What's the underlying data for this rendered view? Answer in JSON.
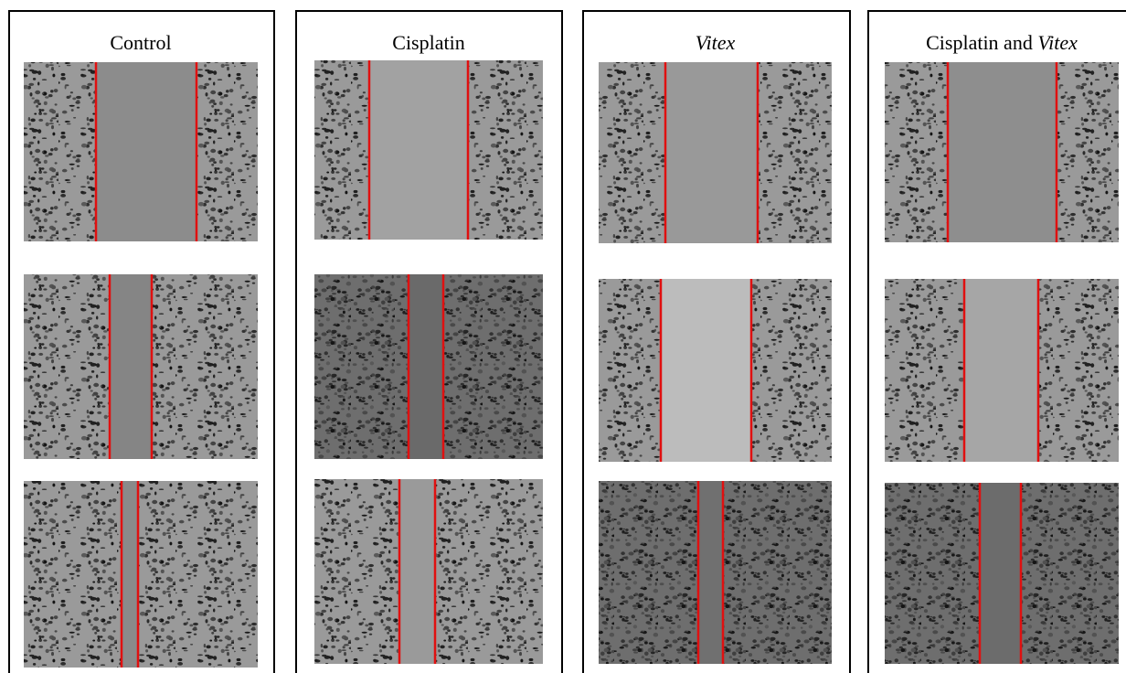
{
  "panels": [
    {
      "title": "Control"
    },
    {
      "title": "Cisplatin"
    },
    {
      "title_italic": "Vitex"
    },
    {
      "title": "Cisplatin and ",
      "title_italic": "Vitex"
    }
  ]
}
